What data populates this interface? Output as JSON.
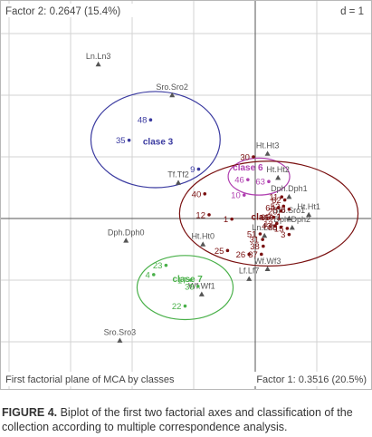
{
  "chart_data": {
    "type": "scatter",
    "title_left": "Factor 2: 0.2647 (15.4%)",
    "title_right": "d = 1",
    "bottom_left_label": "First factorial plane of MCA by classes",
    "xlabel": "Factor 1: 0.3516 (20.5%)",
    "grid": true,
    "modalities": [
      {
        "label": "Ln.Ln3",
        "x": -2.55,
        "y": 2.5
      },
      {
        "label": "Sro.Sro2",
        "x": -1.35,
        "y": 2.0
      },
      {
        "label": "Ht.Ht3",
        "x": 0.2,
        "y": 1.05
      },
      {
        "label": "Ht.Ht2",
        "x": 0.37,
        "y": 0.66
      },
      {
        "label": "Tf.Tf2",
        "x": -1.25,
        "y": 0.58
      },
      {
        "label": "Dph.Dph1",
        "x": 0.55,
        "y": 0.35
      },
      {
        "label": "Ht.Ht1",
        "x": 0.87,
        "y": 0.06
      },
      {
        "label": "Sro.Sro1",
        "x": 0.55,
        "y": 0.0
      },
      {
        "label": "Dph.Dph2",
        "x": 0.6,
        "y": -0.15
      },
      {
        "label": "Ln.Ln5",
        "x": 0.15,
        "y": -0.28
      },
      {
        "label": "Ht.Ht0",
        "x": -0.85,
        "y": -0.42
      },
      {
        "label": "Dph.Dph0",
        "x": -2.1,
        "y": -0.36
      },
      {
        "label": "Lf.Lf7",
        "x": -0.1,
        "y": -0.98
      },
      {
        "label": "Wf.Wf3",
        "x": 0.2,
        "y": -0.82
      },
      {
        "label": "Wf.Wf1",
        "x": -0.87,
        "y": -1.23
      },
      {
        "label": "Sro.Sro3",
        "x": -2.2,
        "y": -1.98
      }
    ],
    "classes": [
      {
        "name": "clase 3",
        "color": "#3a3aa0",
        "label_pos": {
          "x": -1.58,
          "y": 1.2
        },
        "ellipse": {
          "cx": -1.62,
          "cy": 1.28,
          "rx": 1.05,
          "ry": 0.78
        },
        "points": [
          {
            "label": "48",
            "x": -1.7,
            "y": 1.6
          },
          {
            "label": "35",
            "x": -2.05,
            "y": 1.27
          },
          {
            "label": "9",
            "x": -0.92,
            "y": 0.8
          }
        ]
      },
      {
        "name": "clase 6",
        "color": "#b040b0",
        "label_pos": {
          "x": -0.12,
          "y": 0.78
        },
        "ellipse": {
          "cx": 0.06,
          "cy": 0.68,
          "rx": 0.5,
          "ry": 0.3
        },
        "points": [
          {
            "label": "46",
            "x": -0.12,
            "y": 0.63
          },
          {
            "label": "63",
            "x": 0.22,
            "y": 0.6
          },
          {
            "label": "10",
            "x": -0.18,
            "y": 0.38
          }
        ]
      },
      {
        "name": "clase 1",
        "color": "#7a1010",
        "label_pos": {
          "x": 0.18,
          "y": -0.02
        },
        "ellipse": {
          "cx": 0.22,
          "cy": 0.08,
          "rx": 1.45,
          "ry": 0.85
        },
        "points": [
          {
            "label": "30",
            "x": -0.03,
            "y": 1.0
          },
          {
            "label": "40",
            "x": -0.82,
            "y": 0.4
          },
          {
            "label": "12",
            "x": -0.75,
            "y": 0.06
          },
          {
            "label": "1",
            "x": -0.38,
            "y": -0.01
          },
          {
            "label": "25",
            "x": -0.45,
            "y": -0.52
          },
          {
            "label": "26",
            "x": -0.1,
            "y": -0.58
          },
          {
            "label": "37",
            "x": 0.1,
            "y": -0.58
          },
          {
            "label": "38",
            "x": 0.13,
            "y": -0.45
          },
          {
            "label": "31",
            "x": 0.12,
            "y": -0.34
          },
          {
            "label": "51",
            "x": 0.08,
            "y": -0.25
          },
          {
            "label": "3",
            "x": 0.55,
            "y": -0.26
          },
          {
            "label": "43",
            "x": 0.32,
            "y": -0.12
          },
          {
            "label": "66",
            "x": 0.42,
            "y": -0.14
          },
          {
            "label": "15",
            "x": 0.52,
            "y": -0.16
          },
          {
            "label": "65",
            "x": 0.3,
            "y": 0.02
          },
          {
            "label": "20",
            "x": 0.42,
            "y": 0.12
          },
          {
            "label": "64",
            "x": 0.38,
            "y": 0.18
          },
          {
            "label": "52",
            "x": 0.46,
            "y": 0.2
          },
          {
            "label": "62",
            "x": 0.48,
            "y": 0.3
          },
          {
            "label": "11",
            "x": 0.43,
            "y": 0.35
          },
          {
            "label": "8",
            "x": 0.55,
            "y": 0.15
          },
          {
            "label": "13",
            "x": 0.35,
            "y": -0.08
          }
        ]
      },
      {
        "name": "clase 7",
        "color": "#49b049",
        "label_pos": {
          "x": -1.1,
          "y": -1.03
        },
        "ellipse": {
          "cx": -1.14,
          "cy": -1.12,
          "rx": 0.78,
          "ry": 0.52
        },
        "points": [
          {
            "label": "23",
            "x": -1.45,
            "y": -0.76
          },
          {
            "label": "4",
            "x": -1.65,
            "y": -0.91
          },
          {
            "label": "17",
            "x": -1.05,
            "y": -1.0
          },
          {
            "label": "39",
            "x": -0.93,
            "y": -1.1
          },
          {
            "label": "22",
            "x": -1.14,
            "y": -1.42
          }
        ]
      }
    ]
  },
  "caption": {
    "label": "FIGURE 4.",
    "text": " Biplot of the first two factorial axes and classification of the collection according to multiple correspondence analysis."
  },
  "colors": {
    "frame": "#b8b8b8",
    "grid": "#d3d3d3",
    "axis": "#555555",
    "modality": "#555555"
  }
}
